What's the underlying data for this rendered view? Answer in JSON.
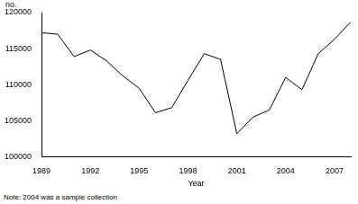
{
  "chart_data": {
    "type": "line",
    "ylabel": "no.",
    "xlabel": "Year",
    "note": "Note: 2004 was a sample collection",
    "x": [
      1989,
      1990,
      1991,
      1992,
      1993,
      1994,
      1995,
      1996,
      1997,
      1998,
      1999,
      2000,
      2001,
      2002,
      2003,
      2004,
      2005,
      2006,
      2007,
      2008
    ],
    "values": [
      117200,
      117000,
      113900,
      114800,
      113300,
      111200,
      109500,
      106100,
      106800,
      110600,
      114300,
      113500,
      103200,
      105500,
      106500,
      111000,
      109300,
      114300,
      116300,
      118700
    ],
    "color": "#000000",
    "xlim": [
      1989,
      2008
    ],
    "xticks": [
      1989,
      1992,
      1995,
      1998,
      2001,
      2004,
      2007
    ],
    "ylim": [
      100000,
      120000
    ],
    "yticks": [
      100000,
      105000,
      110000,
      115000,
      120000
    ],
    "grid": false
  }
}
